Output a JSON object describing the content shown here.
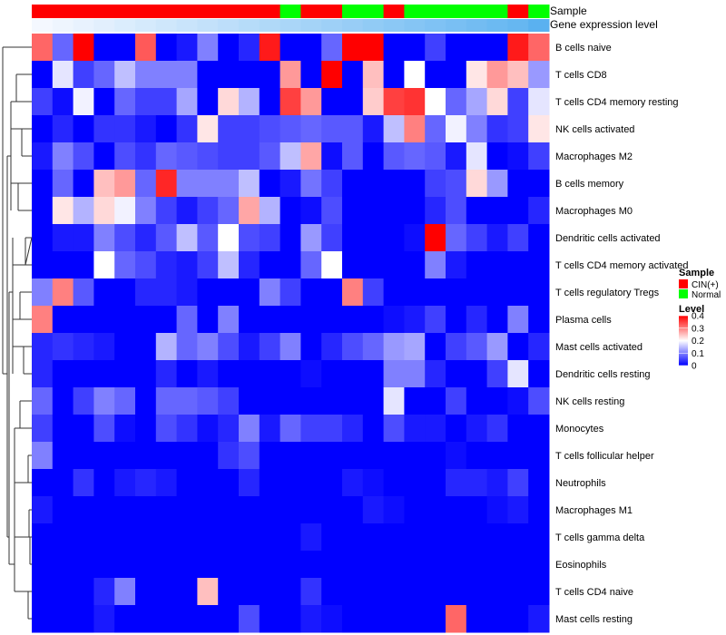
{
  "chart_data": {
    "type": "heatmap",
    "annotation_tracks": [
      {
        "name": "Sample",
        "values": [
          "CIN(+)",
          "CIN(+)",
          "CIN(+)",
          "CIN(+)",
          "CIN(+)",
          "CIN(+)",
          "CIN(+)",
          "CIN(+)",
          "CIN(+)",
          "CIN(+)",
          "CIN(+)",
          "CIN(+)",
          "Normal",
          "CIN(+)",
          "CIN(+)",
          "Normal",
          "Normal",
          "CIN(+)",
          "Normal",
          "Normal",
          "Normal",
          "Normal",
          "Normal",
          "CIN(+)",
          "Normal"
        ]
      },
      {
        "name": "Gene expression level",
        "values": [
          0,
          0.04,
          0.08,
          0.12,
          0.16,
          0.2,
          0.24,
          0.28,
          0.32,
          0.36,
          0.4,
          0.44,
          0.48,
          0.52,
          0.56,
          0.6,
          0.64,
          0.68,
          0.72,
          0.76,
          0.8,
          0.84,
          0.88,
          0.92,
          1.0
        ]
      }
    ],
    "rows": [
      "B cells naive",
      "T cells CD8",
      "T cells CD4 memory resting",
      "NK cells activated",
      "Macrophages M2",
      "B cells memory",
      "Macrophages M0",
      "Dendritic cells activated",
      "T cells CD4 memory activated",
      "T cells regulatory  Tregs",
      "Plasma cells",
      "Mast cells activated",
      "Dendritic cells resting",
      "NK cells resting",
      "Monocytes",
      "T cells follicular helper",
      "Neutrophils",
      "Macrophages M1",
      "T cells gamma delta",
      "Eosinophils",
      "T cells CD4 naive",
      "Mast cells resting"
    ],
    "values": [
      [
        0.32,
        0.08,
        0.4,
        0.0,
        0.0,
        0.33,
        0.0,
        0.02,
        0.1,
        0.0,
        0.03,
        0.38,
        0.0,
        0.0,
        0.08,
        0.4,
        0.4,
        0.0,
        0.0,
        0.05,
        0.0,
        0.0,
        0.0,
        0.38,
        0.32
      ],
      [
        0.0,
        0.18,
        0.05,
        0.08,
        0.15,
        0.1,
        0.1,
        0.1,
        0.0,
        0.0,
        0.0,
        0.0,
        0.28,
        0.0,
        0.4,
        0.0,
        0.25,
        0.0,
        0.2,
        0.0,
        0.0,
        0.22,
        0.28,
        0.25,
        0.12
      ],
      [
        0.05,
        0.01,
        0.19,
        0.0,
        0.08,
        0.05,
        0.05,
        0.13,
        0.0,
        0.23,
        0.14,
        0.0,
        0.35,
        0.28,
        0.0,
        0.0,
        0.24,
        0.35,
        0.36,
        0.2,
        0.08,
        0.13,
        0.23,
        0.05,
        0.18
      ],
      [
        0.0,
        0.03,
        0.0,
        0.04,
        0.04,
        0.02,
        0.0,
        0.04,
        0.22,
        0.05,
        0.05,
        0.06,
        0.07,
        0.08,
        0.07,
        0.07,
        0.02,
        0.15,
        0.3,
        0.08,
        0.19,
        0.1,
        0.04,
        0.05,
        0.22
      ],
      [
        0.02,
        0.1,
        0.06,
        0.0,
        0.06,
        0.04,
        0.08,
        0.07,
        0.06,
        0.05,
        0.05,
        0.07,
        0.15,
        0.27,
        0.01,
        0.07,
        0.0,
        0.07,
        0.08,
        0.07,
        0.02,
        0.18,
        0.0,
        0.01,
        0.05
      ],
      [
        0.0,
        0.08,
        0.0,
        0.25,
        0.28,
        0.08,
        0.37,
        0.1,
        0.1,
        0.1,
        0.15,
        0.0,
        0.02,
        0.09,
        0.05,
        0.0,
        0.0,
        0.0,
        0.0,
        0.05,
        0.06,
        0.23,
        0.12,
        0.0,
        0.0
      ],
      [
        0.0,
        0.22,
        0.14,
        0.23,
        0.19,
        0.1,
        0.05,
        0.02,
        0.05,
        0.08,
        0.27,
        0.14,
        0.0,
        0.01,
        0.06,
        0.0,
        0.0,
        0.0,
        0.0,
        0.03,
        0.06,
        0.0,
        0.0,
        0.0,
        0.03
      ],
      [
        0.0,
        0.02,
        0.02,
        0.1,
        0.06,
        0.03,
        0.07,
        0.15,
        0.07,
        0.2,
        0.06,
        0.05,
        0.0,
        0.12,
        0.05,
        0.0,
        0.0,
        0.0,
        0.01,
        0.4,
        0.08,
        0.05,
        0.02,
        0.05,
        0.0
      ],
      [
        0.0,
        0.0,
        0.0,
        0.2,
        0.08,
        0.06,
        0.03,
        0.02,
        0.05,
        0.15,
        0.03,
        0.0,
        0.0,
        0.08,
        0.2,
        0.0,
        0.0,
        0.0,
        0.0,
        0.1,
        0.02,
        0.0,
        0.0,
        0.0,
        0.0
      ],
      [
        0.1,
        0.3,
        0.07,
        0.0,
        0.0,
        0.03,
        0.03,
        0.02,
        0.0,
        0.0,
        0.0,
        0.1,
        0.05,
        0.0,
        0.0,
        0.3,
        0.05,
        0.0,
        0.0,
        0.0,
        0.0,
        0.0,
        0.0,
        0.0,
        0.0
      ],
      [
        0.3,
        0.0,
        0.0,
        0.0,
        0.0,
        0.0,
        0.0,
        0.08,
        0.0,
        0.1,
        0.0,
        0.0,
        0.0,
        0.0,
        0.0,
        0.0,
        0.0,
        0.01,
        0.02,
        0.05,
        0.0,
        0.03,
        0.0,
        0.1,
        0.0
      ],
      [
        0.03,
        0.04,
        0.03,
        0.02,
        0.0,
        0.0,
        0.14,
        0.08,
        0.1,
        0.06,
        0.02,
        0.05,
        0.1,
        0.0,
        0.03,
        0.06,
        0.08,
        0.12,
        0.13,
        0.0,
        0.05,
        0.07,
        0.12,
        0.0,
        0.03
      ],
      [
        0.03,
        0.0,
        0.0,
        0.0,
        0.0,
        0.0,
        0.03,
        0.0,
        0.02,
        0.0,
        0.0,
        0.0,
        0.0,
        0.01,
        0.0,
        0.0,
        0.0,
        0.1,
        0.1,
        0.03,
        0.0,
        0.0,
        0.05,
        0.18,
        0.0
      ],
      [
        0.08,
        0.0,
        0.05,
        0.1,
        0.08,
        0.0,
        0.08,
        0.08,
        0.07,
        0.05,
        0.0,
        0.0,
        0.0,
        0.0,
        0.0,
        0.0,
        0.0,
        0.18,
        0.0,
        0.0,
        0.05,
        0.0,
        0.0,
        0.01,
        0.06
      ],
      [
        0.05,
        0.0,
        0.0,
        0.06,
        0.01,
        0.0,
        0.06,
        0.04,
        0.01,
        0.03,
        0.1,
        0.02,
        0.08,
        0.05,
        0.05,
        0.03,
        0.0,
        0.06,
        0.02,
        0.02,
        0.0,
        0.02,
        0.04,
        0.0,
        0.0
      ],
      [
        0.1,
        0.0,
        0.0,
        0.0,
        0.0,
        0.0,
        0.0,
        0.0,
        0.0,
        0.04,
        0.06,
        0.0,
        0.0,
        0.0,
        0.0,
        0.0,
        0.0,
        0.0,
        0.0,
        0.0,
        0.01,
        0.0,
        0.0,
        0.0,
        0.0
      ],
      [
        0.0,
        0.0,
        0.04,
        0.0,
        0.02,
        0.03,
        0.02,
        0.0,
        0.0,
        0.0,
        0.03,
        0.0,
        0.0,
        0.0,
        0.0,
        0.02,
        0.01,
        0.0,
        0.0,
        0.0,
        0.03,
        0.03,
        0.02,
        0.05,
        0.0
      ],
      [
        0.02,
        0.0,
        0.0,
        0.0,
        0.0,
        0.0,
        0.0,
        0.0,
        0.0,
        0.0,
        0.0,
        0.0,
        0.0,
        0.0,
        0.0,
        0.0,
        0.02,
        0.01,
        0.0,
        0.0,
        0.0,
        0.0,
        0.01,
        0.02,
        0.0
      ],
      [
        0.0,
        0.0,
        0.0,
        0.0,
        0.0,
        0.0,
        0.0,
        0.0,
        0.0,
        0.0,
        0.0,
        0.0,
        0.0,
        0.02,
        0.0,
        0.0,
        0.0,
        0.0,
        0.0,
        0.0,
        0.0,
        0.0,
        0.0,
        0.0,
        0.0
      ],
      [
        0.0,
        0.0,
        0.0,
        0.0,
        0.0,
        0.0,
        0.0,
        0.0,
        0.0,
        0.0,
        0.0,
        0.0,
        0.0,
        0.0,
        0.0,
        0.0,
        0.0,
        0.0,
        0.0,
        0.0,
        0.0,
        0.0,
        0.0,
        0.0,
        0.0
      ],
      [
        0.0,
        0.0,
        0.0,
        0.03,
        0.1,
        0.0,
        0.0,
        0.0,
        0.25,
        0.0,
        0.0,
        0.0,
        0.0,
        0.04,
        0.0,
        0.0,
        0.0,
        0.0,
        0.0,
        0.0,
        0.0,
        0.0,
        0.0,
        0.0,
        0.0
      ],
      [
        0.0,
        0.0,
        0.0,
        0.02,
        0.0,
        0.0,
        0.0,
        0.0,
        0.0,
        0.0,
        0.06,
        0.0,
        0.0,
        0.02,
        0.01,
        0.0,
        0.0,
        0.0,
        0.0,
        0.0,
        0.32,
        0.0,
        0.0,
        0.0,
        0.02
      ]
    ],
    "legends": {
      "sample": {
        "title": "Sample",
        "entries": [
          {
            "label": "CIN(+)",
            "color": "#ff0000"
          },
          {
            "label": "Normal",
            "color": "#00ff00"
          }
        ]
      },
      "level": {
        "title": "Level",
        "ticks": [
          0.4,
          0.3,
          0.2,
          0.1,
          0
        ],
        "tick_labels": [
          "0.4",
          "0.3",
          "0.2",
          "0.1",
          "0"
        ],
        "range": [
          0,
          0.4
        ]
      }
    },
    "colors": {
      "low": "#0000ff",
      "mid": "#ffffff",
      "high": "#ff0000",
      "cin": "#ff0000",
      "normal": "#00ff00",
      "expr_low": "#f4f8ff",
      "expr_high": "#5ab1f0"
    },
    "legend_position": "right"
  }
}
